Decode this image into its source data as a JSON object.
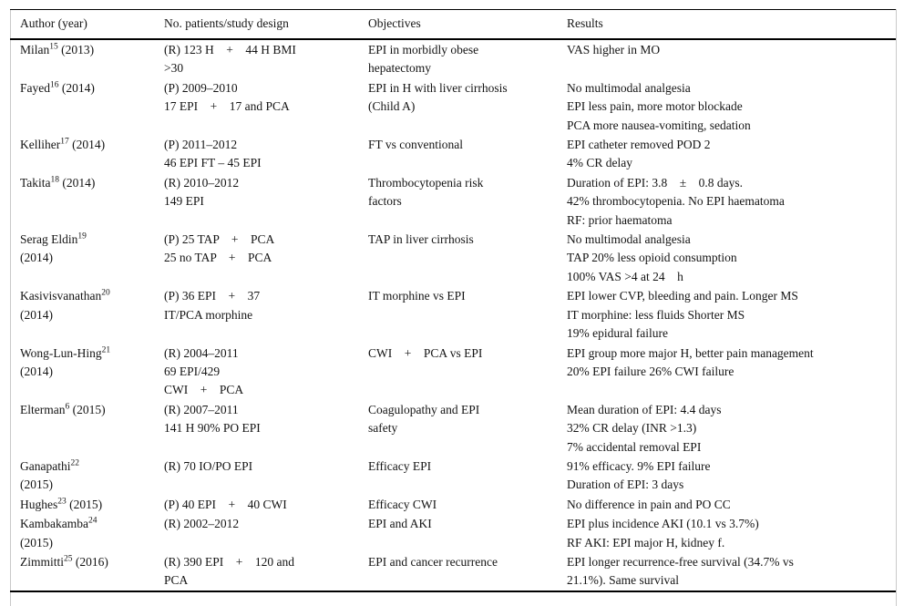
{
  "table": {
    "columns": [
      {
        "label": "Author (year)"
      },
      {
        "label": "No. patients/study design"
      },
      {
        "label": "Objectives"
      },
      {
        "label": "Results"
      }
    ],
    "rows": [
      {
        "author": {
          "name": "Milan",
          "ref": "15",
          "year": "(2013)",
          "year_newline": false
        },
        "design": [
          "(R) 123 H    +    44 H BMI",
          ">30"
        ],
        "objectives": [
          "EPI in morbidly obese",
          "hepatectomy"
        ],
        "results": [
          "VAS higher in MO"
        ]
      },
      {
        "author": {
          "name": "Fayed",
          "ref": "16",
          "year": "(2014)",
          "year_newline": false
        },
        "design": [
          "(P) 2009–2010",
          "17 EPI    +    17 and PCA"
        ],
        "objectives": [
          "EPI in H with liver cirrhosis",
          "(Child A)"
        ],
        "results": [
          "No multimodal analgesia",
          "EPI less pain, more motor blockade",
          "PCA more nausea-vomiting, sedation"
        ]
      },
      {
        "author": {
          "name": "Kelliher",
          "ref": "17",
          "year": "(2014)",
          "year_newline": false
        },
        "design": [
          "(P) 2011–2012",
          "46 EPI FT – 45 EPI"
        ],
        "objectives": [
          "FT vs conventional"
        ],
        "results": [
          "EPI catheter removed POD 2",
          "4% CR delay"
        ]
      },
      {
        "author": {
          "name": "Takita",
          "ref": "18",
          "year": "(2014)",
          "year_newline": false
        },
        "design": [
          "(R) 2010–2012",
          "149 EPI"
        ],
        "objectives": [
          "Thrombocytopenia risk",
          "factors"
        ],
        "results": [
          "Duration of EPI: 3.8    ±    0.8 days.",
          "42% thrombocytopenia. No EPI haematoma",
          "RF: prior haematoma"
        ]
      },
      {
        "author": {
          "name": "Serag Eldin",
          "ref": "19",
          "year": "(2014)",
          "year_newline": true
        },
        "design": [
          "(P) 25 TAP    +    PCA",
          "25 no TAP    +    PCA"
        ],
        "objectives": [
          "TAP in liver cirrhosis"
        ],
        "results": [
          "No multimodal analgesia",
          "TAP 20% less opioid consumption",
          "100% VAS >4 at 24    h"
        ]
      },
      {
        "author": {
          "name": "Kasivisvanathan",
          "ref": "20",
          "year": "(2014)",
          "year_newline": true
        },
        "design": [
          "(P) 36 EPI    +    37",
          "IT/PCA morphine"
        ],
        "objectives": [
          "IT morphine vs EPI"
        ],
        "results": [
          "EPI lower CVP, bleeding and pain. Longer MS",
          "IT morphine: less fluids Shorter MS",
          "19% epidural failure"
        ]
      },
      {
        "author": {
          "name": "Wong-Lun-Hing",
          "ref": "21",
          "year": "(2014)",
          "year_newline": true
        },
        "design": [
          "(R) 2004–2011",
          "69 EPI/429",
          "CWI    +    PCA"
        ],
        "objectives": [
          "CWI    +    PCA vs EPI"
        ],
        "results": [
          "EPI group more major H, better pain management",
          "20% EPI failure 26% CWI failure"
        ]
      },
      {
        "author": {
          "name": "Elterman",
          "ref": "6",
          "year": "(2015)",
          "year_newline": false
        },
        "design": [
          "(R) 2007–2011",
          "141 H 90% PO EPI"
        ],
        "objectives": [
          "Coagulopathy and EPI",
          "safety"
        ],
        "results": [
          "Mean duration of EPI: 4.4 days",
          "32% CR delay (INR >1.3)",
          "7% accidental removal EPI"
        ]
      },
      {
        "author": {
          "name": "Ganapathi",
          "ref": "22",
          "year": "(2015)",
          "year_newline": true
        },
        "design": [
          "(R) 70 IO/PO EPI"
        ],
        "objectives": [
          "Efficacy EPI"
        ],
        "results": [
          "91% efficacy. 9% EPI failure",
          "Duration of EPI: 3 days"
        ]
      },
      {
        "author": {
          "name": "Hughes",
          "ref": "23",
          "year": "(2015)",
          "year_newline": false
        },
        "design": [
          "(P) 40 EPI    +    40 CWI"
        ],
        "objectives": [
          "Efficacy CWI"
        ],
        "results": [
          "No difference in pain and PO CC"
        ]
      },
      {
        "author": {
          "name": "Kambakamba",
          "ref": "24",
          "year": "(2015)",
          "year_newline": true
        },
        "design": [
          "(R) 2002–2012"
        ],
        "objectives": [
          "EPI and AKI"
        ],
        "results": [
          "EPI plus incidence AKI (10.1 vs 3.7%)",
          "RF AKI: EPI major H, kidney f."
        ]
      },
      {
        "author": {
          "name": "Zimmitti",
          "ref": "25",
          "year": "(2016)",
          "year_newline": false
        },
        "design": [
          "(R) 390 EPI    +    120 and",
          "PCA"
        ],
        "objectives": [
          "EPI and cancer recurrence"
        ],
        "results": [
          "EPI longer recurrence-free survival (34.7% vs",
          "21.1%). Same survival"
        ]
      }
    ]
  }
}
